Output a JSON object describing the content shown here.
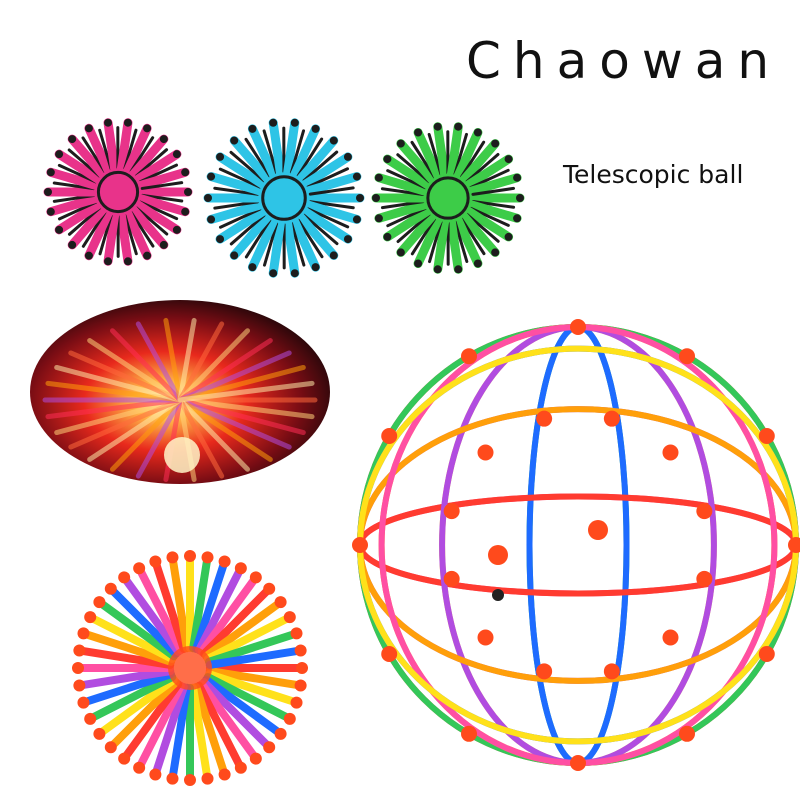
{
  "brand": "Chaowan",
  "subtitle": "Telescopic ball",
  "colors": {
    "pink": "#e8338a",
    "cyan": "#2ec4e6",
    "green": "#3dcc48",
    "dark": "#1d1d1d",
    "orange": "#ff4a1c",
    "rainbow": [
      "#ff3b30",
      "#ff9f0a",
      "#ffe11a",
      "#34c759",
      "#1e6bff",
      "#b14ce0",
      "#ff4fa3"
    ]
  }
}
